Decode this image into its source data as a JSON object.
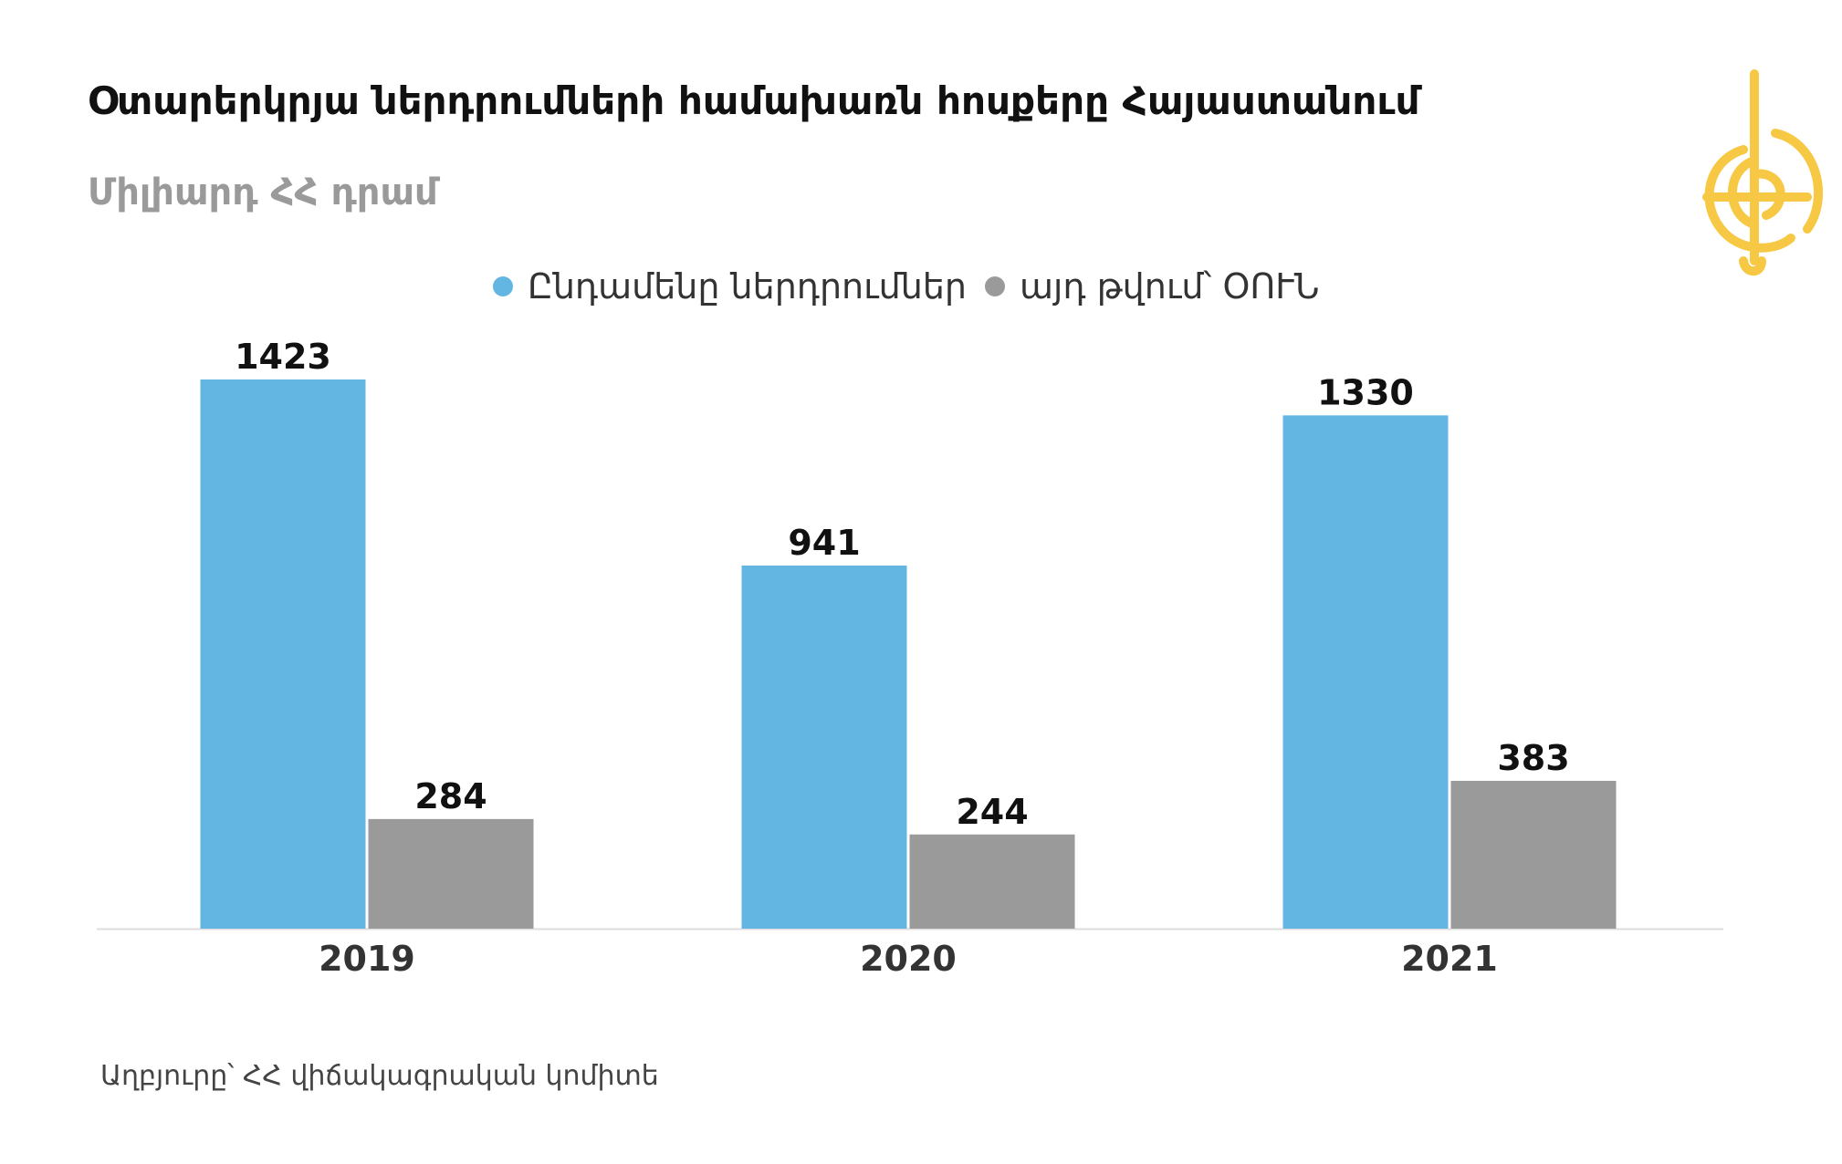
{
  "header": {
    "title": "Օտարերկրյա ներդրումների համախառն հոսքերը Հայաստանում",
    "subtitle": "Միլիարդ ՀՀ դրամ"
  },
  "legend": {
    "items": [
      {
        "label": "Ընդամենը ներդրումներ",
        "color": "#64b6e2"
      },
      {
        "label": "այդ թվում՝ ՕՈՒՆ",
        "color": "#9a9a9a"
      }
    ]
  },
  "logo": {
    "icon": "globe-lyre-logo-icon",
    "color": "#f7c843"
  },
  "chart_data": {
    "type": "bar",
    "title": "Օտարերկրյա ներդրումների համախառն հոսքերը Հայաստանում",
    "subtitle": "Միլիարդ ՀՀ դրամ",
    "categories": [
      "2019",
      "2020",
      "2021"
    ],
    "series": [
      {
        "name": "Ընդամենը ներդրումներ",
        "color": "#64b6e2",
        "values": [
          1423,
          941,
          1330
        ]
      },
      {
        "name": "այդ թվում՝ ՕՈՒՆ",
        "color": "#9a9a9a",
        "values": [
          284,
          244,
          383
        ]
      }
    ],
    "xlabel": "",
    "ylabel": "",
    "ylim": [
      0,
      1423
    ],
    "grid": false,
    "legend_position": "top-center"
  },
  "footer": {
    "source": "Աղբյուրը՝ ՀՀ վիճակագրական կոմիտե"
  }
}
